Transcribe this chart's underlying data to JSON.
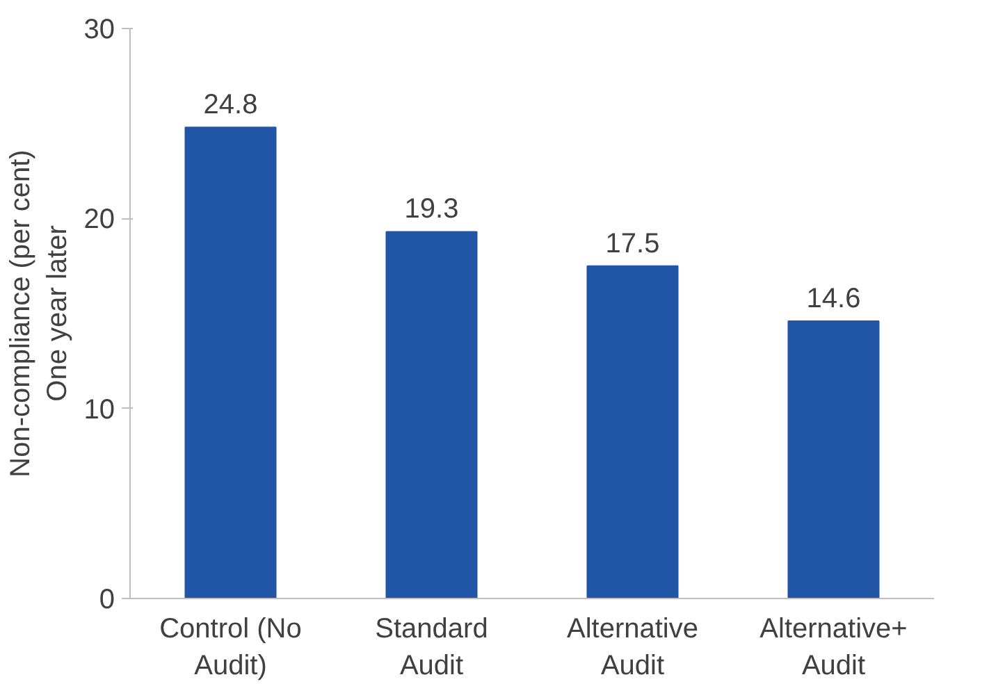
{
  "chart_data": {
    "type": "bar",
    "ylabel": "Non-compliance (per cent)\nOne year later",
    "categories": [
      "Control (No Audit)",
      "Standard Audit",
      "Alternative Audit",
      "Alternative+ Audit"
    ],
    "values": [
      24.8,
      19.3,
      17.5,
      14.6
    ],
    "color": "#2155a6",
    "ylim": [
      0,
      30
    ],
    "yticks": [
      0,
      10,
      20,
      30
    ],
    "data_labels": true,
    "grid": false
  }
}
